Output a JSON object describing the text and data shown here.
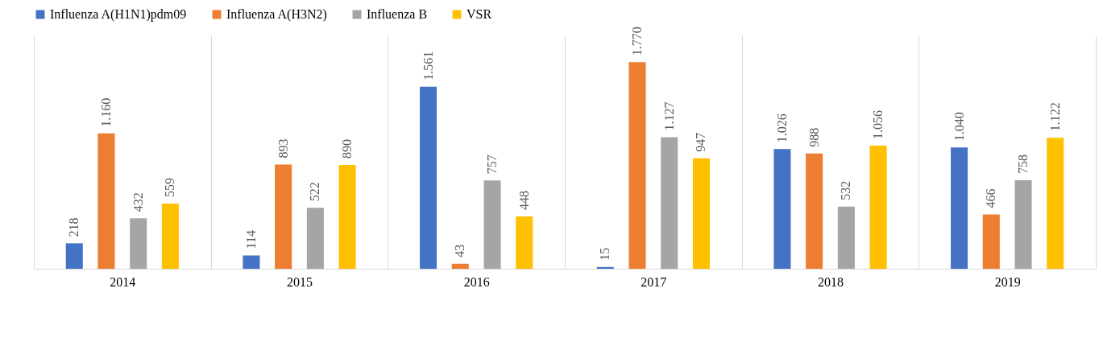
{
  "chart_data": {
    "type": "bar",
    "categories": [
      "2014",
      "2015",
      "2016",
      "2017",
      "2018",
      "2019"
    ],
    "series": [
      {
        "name": "Influenza A(H1N1)pdm09",
        "color": "#4472c4",
        "values": [
          218,
          114,
          1561,
          15,
          1026,
          1040
        ],
        "value_labels": [
          "218",
          "114",
          "1.561",
          "15",
          "1.026",
          "1.040"
        ]
      },
      {
        "name": "Influenza A(H3N2)",
        "color": "#ed7d31",
        "values": [
          1160,
          893,
          43,
          1770,
          988,
          466
        ],
        "value_labels": [
          "1.160",
          "893",
          "43",
          "1.770",
          "988",
          "466"
        ]
      },
      {
        "name": "Influenza B",
        "color": "#a5a5a5",
        "values": [
          432,
          522,
          757,
          1127,
          532,
          758
        ],
        "value_labels": [
          "432",
          "522",
          "757",
          "1.127",
          "532",
          "758"
        ]
      },
      {
        "name": "VSR",
        "color": "#ffc000",
        "values": [
          559,
          890,
          448,
          947,
          1056,
          1122
        ],
        "value_labels": [
          "559",
          "890",
          "448",
          "947",
          "1.056",
          "1.122"
        ]
      }
    ],
    "legend": "top",
    "grid": "x"
  }
}
